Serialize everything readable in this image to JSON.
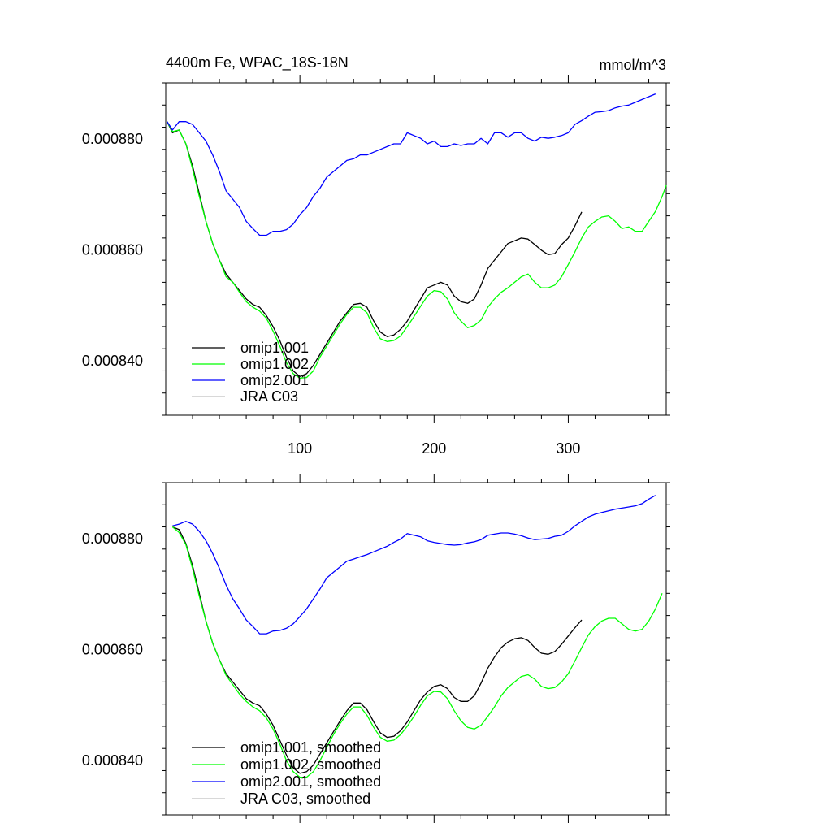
{
  "chart_data": [
    {
      "type": "line",
      "title": "4400m Fe, WPAC_18S-18N",
      "units": "mmol/m^3",
      "xlim": [
        0,
        373
      ],
      "ylim": [
        0.00083,
        0.00089
      ],
      "xticks": [
        100,
        200,
        300
      ],
      "xtick_labels": [
        "100",
        "200",
        "300"
      ],
      "yticks": [
        0.00084,
        0.00086,
        0.00088
      ],
      "ytick_labels": [
        "0.000840",
        "0.000860",
        "0.000880"
      ],
      "legend_position": "bottom-left",
      "series": [
        {
          "name": "omip1.001",
          "color": "#000000",
          "x": [
            1,
            5,
            10,
            15,
            20,
            25,
            30,
            35,
            40,
            45,
            50,
            55,
            60,
            65,
            70,
            75,
            80,
            85,
            90,
            95,
            100,
            105,
            110,
            115,
            120,
            125,
            130,
            135,
            140,
            145,
            150,
            155,
            160,
            165,
            170,
            175,
            180,
            185,
            190,
            195,
            200,
            205,
            210,
            215,
            220,
            225,
            230,
            235,
            240,
            245,
            250,
            255,
            260,
            265,
            270,
            275,
            280,
            285,
            290,
            295,
            300,
            305,
            310
          ],
          "y": [
            0.000883,
            0.000881,
            0.0008815,
            0.000879,
            0.000875,
            0.00087,
            0.000865,
            0.000861,
            0.000858,
            0.0008555,
            0.000854,
            0.0008525,
            0.000851,
            0.00085,
            0.0008495,
            0.000848,
            0.000846,
            0.0008435,
            0.0008405,
            0.000838,
            0.000837,
            0.0008375,
            0.000839,
            0.000841,
            0.000843,
            0.000845,
            0.000847,
            0.0008485,
            0.00085,
            0.0008502,
            0.0008495,
            0.000847,
            0.000845,
            0.0008442,
            0.0008445,
            0.0008455,
            0.000847,
            0.000849,
            0.000851,
            0.000853,
            0.0008535,
            0.000854,
            0.0008535,
            0.0008515,
            0.0008505,
            0.0008502,
            0.000851,
            0.0008535,
            0.0008565,
            0.000858,
            0.0008595,
            0.000861,
            0.0008615,
            0.000862,
            0.0008618,
            0.0008608,
            0.0008598,
            0.000859,
            0.0008592,
            0.0008608,
            0.000862,
            0.0008642,
            0.0008667
          ]
        },
        {
          "name": "omip1.002",
          "color": "#00ff00",
          "x": [
            1,
            5,
            10,
            15,
            20,
            25,
            30,
            35,
            40,
            45,
            50,
            55,
            60,
            65,
            70,
            75,
            80,
            85,
            90,
            95,
            100,
            105,
            110,
            115,
            120,
            125,
            130,
            135,
            140,
            145,
            150,
            155,
            160,
            165,
            170,
            175,
            180,
            185,
            190,
            195,
            200,
            205,
            210,
            215,
            220,
            225,
            230,
            235,
            240,
            245,
            250,
            255,
            260,
            265,
            270,
            275,
            280,
            285,
            290,
            295,
            300,
            305,
            310,
            315,
            320,
            325,
            330,
            335,
            340,
            345,
            350,
            355,
            360,
            365,
            370,
            373
          ],
          "y": [
            0.000883,
            0.0008812,
            0.0008815,
            0.000879,
            0.0008745,
            0.0008695,
            0.000865,
            0.000861,
            0.000858,
            0.000855,
            0.000854,
            0.0008522,
            0.0008505,
            0.0008495,
            0.0008488,
            0.0008475,
            0.0008452,
            0.0008425,
            0.0008395,
            0.0008375,
            0.0008367,
            0.0008368,
            0.000838,
            0.0008405,
            0.0008425,
            0.0008445,
            0.0008465,
            0.0008482,
            0.0008495,
            0.0008495,
            0.0008485,
            0.0008458,
            0.0008438,
            0.0008433,
            0.0008435,
            0.0008443,
            0.000846,
            0.0008478,
            0.0008497,
            0.0008515,
            0.0008525,
            0.0008523,
            0.000851,
            0.0008485,
            0.000847,
            0.0008458,
            0.0008462,
            0.0008472,
            0.0008495,
            0.000851,
            0.0008522,
            0.000853,
            0.000854,
            0.000855,
            0.0008555,
            0.000854,
            0.000853,
            0.000853,
            0.0008535,
            0.000855,
            0.0008572,
            0.0008595,
            0.000862,
            0.000864,
            0.000865,
            0.0008658,
            0.000866,
            0.000865,
            0.0008637,
            0.000864,
            0.0008632,
            0.0008632,
            0.000865,
            0.0008668,
            0.0008695,
            0.0008715
          ]
        },
        {
          "name": "omip2.001",
          "color": "#0000ff",
          "x": [
            1,
            5,
            10,
            15,
            20,
            25,
            30,
            35,
            40,
            45,
            50,
            55,
            60,
            65,
            70,
            75,
            80,
            85,
            90,
            95,
            100,
            105,
            110,
            115,
            120,
            125,
            130,
            135,
            140,
            145,
            150,
            155,
            160,
            165,
            170,
            175,
            180,
            185,
            190,
            195,
            200,
            205,
            210,
            215,
            220,
            225,
            230,
            235,
            240,
            245,
            250,
            255,
            260,
            265,
            270,
            275,
            280,
            285,
            290,
            295,
            300,
            305,
            310,
            315,
            320,
            325,
            330,
            335,
            340,
            345,
            350,
            355,
            360,
            365
          ],
          "y": [
            0.000883,
            0.0008815,
            0.000883,
            0.000883,
            0.0008825,
            0.000881,
            0.0008795,
            0.000877,
            0.000874,
            0.0008705,
            0.000869,
            0.0008675,
            0.000865,
            0.0008637,
            0.0008625,
            0.0008625,
            0.0008632,
            0.0008632,
            0.0008635,
            0.0008645,
            0.0008662,
            0.0008675,
            0.0008695,
            0.000871,
            0.000873,
            0.000874,
            0.000875,
            0.000876,
            0.0008763,
            0.000877,
            0.000877,
            0.0008775,
            0.000878,
            0.0008785,
            0.000879,
            0.000879,
            0.000881,
            0.0008805,
            0.00088,
            0.000879,
            0.0008795,
            0.0008785,
            0.0008785,
            0.000879,
            0.0008787,
            0.000879,
            0.000879,
            0.00088,
            0.000879,
            0.000881,
            0.000881,
            0.0008802,
            0.000881,
            0.000881,
            0.00088,
            0.0008795,
            0.0008802,
            0.00088,
            0.0008802,
            0.0008805,
            0.000881,
            0.0008825,
            0.0008832,
            0.000884,
            0.0008847,
            0.0008848,
            0.000885,
            0.0008855,
            0.0008858,
            0.000886,
            0.0008865,
            0.000887,
            0.0008875,
            0.000888
          ]
        },
        {
          "name": "JRA C03",
          "color": "#c0c0c0",
          "x": [],
          "y": []
        }
      ]
    },
    {
      "type": "line",
      "title": "",
      "xlim": [
        0,
        373
      ],
      "ylim": [
        0.00083,
        0.00089
      ],
      "xticks": [
        100,
        200,
        300
      ],
      "yticks": [
        0.00084,
        0.00086,
        0.00088
      ],
      "ytick_labels": [
        "0.000840",
        "0.000860",
        "0.000880"
      ],
      "legend_position": "bottom-left",
      "series": [
        {
          "name": "omip1.001, smoothed",
          "color": "#000000",
          "x": [
            5,
            10,
            15,
            20,
            25,
            30,
            35,
            40,
            45,
            50,
            55,
            60,
            65,
            70,
            75,
            80,
            85,
            90,
            95,
            100,
            105,
            110,
            115,
            120,
            125,
            130,
            135,
            140,
            145,
            150,
            155,
            160,
            165,
            170,
            175,
            180,
            185,
            190,
            195,
            200,
            205,
            210,
            215,
            220,
            225,
            230,
            235,
            240,
            245,
            250,
            255,
            260,
            265,
            270,
            275,
            280,
            285,
            290,
            295,
            300,
            305,
            310
          ],
          "y": [
            0.000882,
            0.0008815,
            0.000879,
            0.000875,
            0.00087,
            0.000865,
            0.000861,
            0.000858,
            0.0008555,
            0.000854,
            0.0008525,
            0.000851,
            0.0008502,
            0.0008497,
            0.0008482,
            0.0008462,
            0.0008435,
            0.0008408,
            0.0008385,
            0.0008375,
            0.0008378,
            0.000839,
            0.000841,
            0.000843,
            0.000845,
            0.000847,
            0.0008488,
            0.0008502,
            0.0008502,
            0.000849,
            0.0008468,
            0.0008448,
            0.000844,
            0.0008442,
            0.0008452,
            0.0008468,
            0.0008488,
            0.0008508,
            0.0008522,
            0.0008532,
            0.0008535,
            0.0008528,
            0.0008512,
            0.0008505,
            0.0008505,
            0.0008515,
            0.0008538,
            0.0008565,
            0.0008585,
            0.0008602,
            0.0008612,
            0.0008618,
            0.000862,
            0.0008615,
            0.0008602,
            0.0008592,
            0.000859,
            0.0008595,
            0.0008608,
            0.0008623,
            0.0008638,
            0.0008652
          ]
        },
        {
          "name": "omip1.002, smoothed",
          "color": "#00ff00",
          "x": [
            5,
            10,
            15,
            20,
            25,
            30,
            35,
            40,
            45,
            50,
            55,
            60,
            65,
            70,
            75,
            80,
            85,
            90,
            95,
            100,
            105,
            110,
            115,
            120,
            125,
            130,
            135,
            140,
            145,
            150,
            155,
            160,
            165,
            170,
            175,
            180,
            185,
            190,
            195,
            200,
            205,
            210,
            215,
            220,
            225,
            230,
            235,
            240,
            245,
            250,
            255,
            260,
            265,
            270,
            275,
            280,
            285,
            290,
            295,
            300,
            305,
            310,
            315,
            320,
            325,
            330,
            335,
            340,
            345,
            350,
            355,
            360,
            365,
            370
          ],
          "y": [
            0.000882,
            0.000881,
            0.0008788,
            0.0008745,
            0.0008695,
            0.000865,
            0.000861,
            0.000858,
            0.0008552,
            0.0008535,
            0.0008518,
            0.0008505,
            0.0008495,
            0.0008488,
            0.0008475,
            0.0008455,
            0.0008428,
            0.0008398,
            0.0008378,
            0.0008368,
            0.0008368,
            0.0008378,
            0.0008398,
            0.0008422,
            0.0008445,
            0.0008465,
            0.0008482,
            0.0008495,
            0.0008495,
            0.000848,
            0.0008458,
            0.000844,
            0.0008433,
            0.0008435,
            0.0008445,
            0.000846,
            0.0008478,
            0.0008498,
            0.0008515,
            0.0008523,
            0.0008522,
            0.000851,
            0.0008488,
            0.000847,
            0.0008458,
            0.0008455,
            0.0008462,
            0.0008478,
            0.0008495,
            0.0008515,
            0.000853,
            0.000854,
            0.000855,
            0.0008553,
            0.0008545,
            0.0008532,
            0.0008528,
            0.000853,
            0.000854,
            0.0008555,
            0.0008578,
            0.0008602,
            0.0008625,
            0.000864,
            0.000865,
            0.0008655,
            0.0008655,
            0.0008645,
            0.0008635,
            0.0008632,
            0.0008635,
            0.000865,
            0.0008672,
            0.00087
          ]
        },
        {
          "name": "omip2.001, smoothed",
          "color": "#0000ff",
          "x": [
            5,
            10,
            15,
            20,
            25,
            30,
            35,
            40,
            45,
            50,
            55,
            60,
            65,
            70,
            75,
            80,
            85,
            90,
            95,
            100,
            105,
            110,
            115,
            120,
            125,
            130,
            135,
            140,
            145,
            150,
            155,
            160,
            165,
            170,
            175,
            180,
            185,
            190,
            195,
            200,
            205,
            210,
            215,
            220,
            225,
            230,
            235,
            240,
            245,
            250,
            255,
            260,
            265,
            270,
            275,
            280,
            285,
            290,
            295,
            300,
            305,
            310,
            315,
            320,
            325,
            330,
            335,
            340,
            345,
            350,
            355,
            360,
            365
          ],
          "y": [
            0.0008822,
            0.0008825,
            0.000883,
            0.0008825,
            0.0008812,
            0.0008795,
            0.0008772,
            0.0008745,
            0.0008715,
            0.000869,
            0.0008672,
            0.0008652,
            0.000864,
            0.0008627,
            0.0008627,
            0.0008632,
            0.0008633,
            0.0008637,
            0.0008645,
            0.0008658,
            0.0008672,
            0.000869,
            0.0008708,
            0.0008728,
            0.0008738,
            0.0008748,
            0.0008758,
            0.0008762,
            0.0008766,
            0.000877,
            0.0008775,
            0.000878,
            0.0008785,
            0.0008792,
            0.0008798,
            0.0008808,
            0.0008805,
            0.0008802,
            0.0008795,
            0.0008792,
            0.000879,
            0.0008788,
            0.0008787,
            0.0008788,
            0.0008791,
            0.0008793,
            0.0008797,
            0.0008805,
            0.0008807,
            0.0008809,
            0.0008809,
            0.0008807,
            0.0008804,
            0.00088,
            0.0008797,
            0.0008798,
            0.0008799,
            0.0008803,
            0.0008805,
            0.0008812,
            0.0008822,
            0.000883,
            0.0008838,
            0.0008843,
            0.0008846,
            0.0008849,
            0.0008852,
            0.0008854,
            0.0008856,
            0.0008858,
            0.0008862,
            0.000887,
            0.0008877
          ]
        },
        {
          "name": "JRA C03, smoothed",
          "color": "#c0c0c0",
          "x": [],
          "y": []
        }
      ]
    }
  ]
}
